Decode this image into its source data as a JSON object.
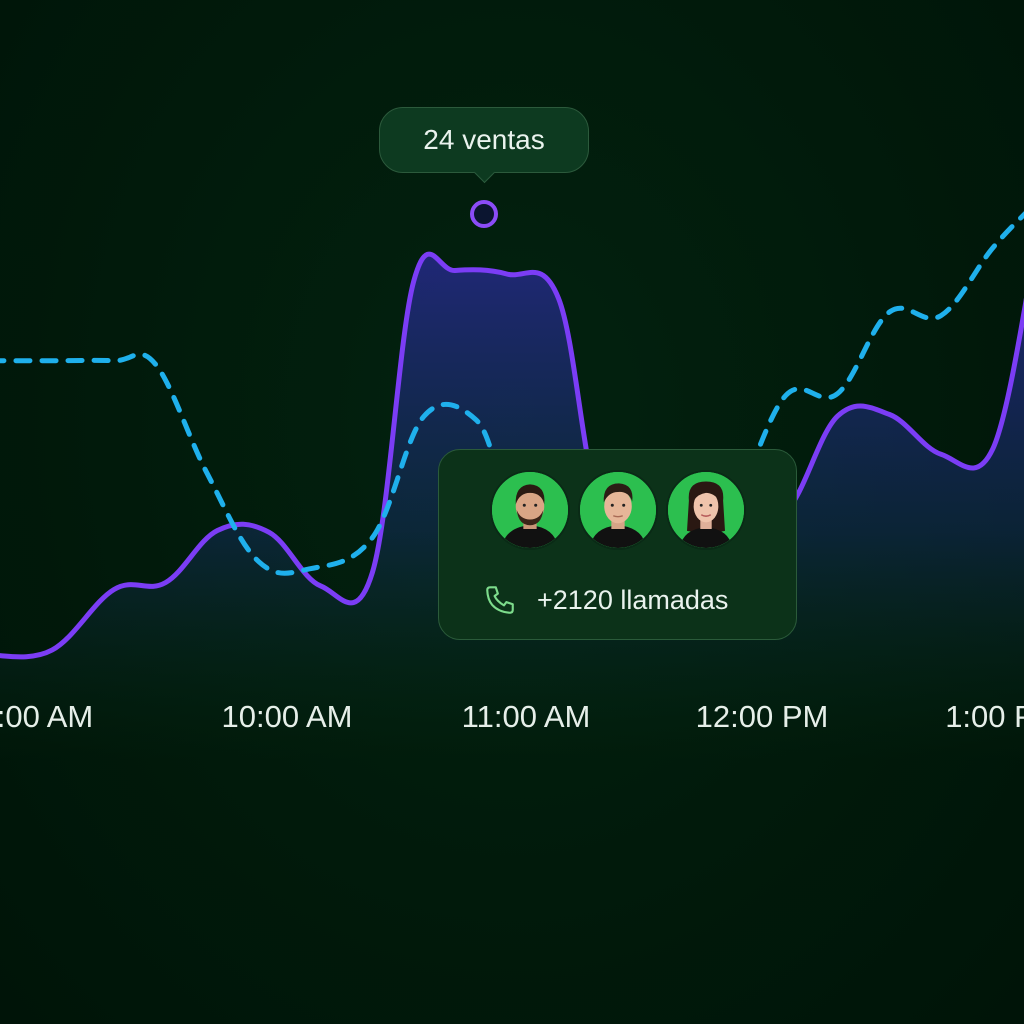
{
  "chart_data": {
    "type": "area",
    "x_ticks": [
      ":00 AM",
      "10:00 AM",
      "11:00 AM",
      "12:00 PM",
      "1:00 P"
    ],
    "series": [
      {
        "style": "solid-area",
        "color": "#7b3df5",
        "x": [
          8.5,
          8.8,
          9.1,
          9.35,
          9.6,
          9.85,
          10.1,
          10.35,
          10.55,
          10.75,
          11.0,
          11.25,
          11.45,
          11.7,
          11.95,
          12.1,
          12.35,
          12.6,
          12.85,
          13.1,
          13.35,
          13.55
        ],
        "y": [
          2,
          2.3,
          5.8,
          6.2,
          9.2,
          9.1,
          6.0,
          6.8,
          23.6,
          24.2,
          24.0,
          22.6,
          10.6,
          10.3,
          10.4,
          10.2,
          10.3,
          15.8,
          15.9,
          13.6,
          13.9,
          25.0
        ]
      },
      {
        "style": "dashed",
        "color": "#1fb0ec",
        "x": [
          8.5,
          8.8,
          9.1,
          9.3,
          9.55,
          9.8,
          10.05,
          10.35,
          10.6,
          10.85,
          11.0,
          11.2,
          11.45,
          11.7,
          11.95,
          12.1,
          12.35,
          12.6,
          12.85,
          13.1,
          13.35,
          13.55
        ],
        "y": [
          19,
          19,
          19,
          18.8,
          12.5,
          7.4,
          7.0,
          8.8,
          15.8,
          15.6,
          11.6,
          10.5,
          10.3,
          10.4,
          10.5,
          10.8,
          17.0,
          17.1,
          21.8,
          21.6,
          25.5,
          28
        ]
      }
    ],
    "xlim": [
      8.5,
      13.55
    ],
    "ylim": [
      0,
      30
    ]
  },
  "tooltip": {
    "label": "24 ventas"
  },
  "call_card": {
    "text": "+2120 llamadas",
    "icon": "phone-icon",
    "avatars": [
      "avatar-man-beard",
      "avatar-man",
      "avatar-woman"
    ]
  },
  "colors": {
    "background": "#001a0b",
    "solid_line": "#7b3df5",
    "dashed_line": "#1fb0ec",
    "card": "#0c3219",
    "avatar_bg": "#2cbf4f"
  }
}
